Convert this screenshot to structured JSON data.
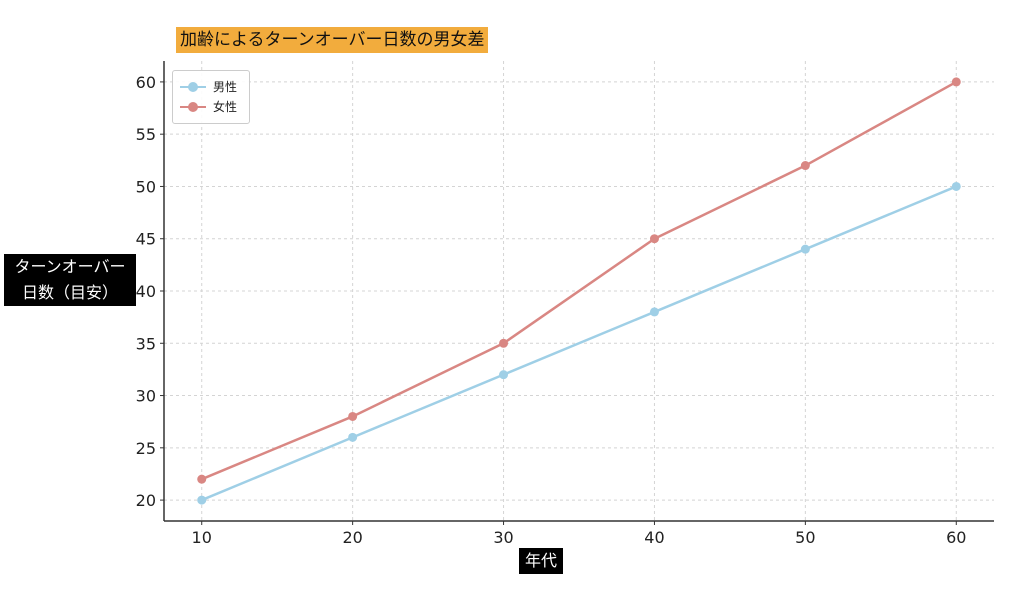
{
  "chart_data": {
    "type": "line",
    "title": "加齢によるターンオーバー日数の男女差",
    "xlabel": "年代",
    "ylabel_lines": [
      "ターンオーバー",
      "日数（目安）"
    ],
    "x": [
      10,
      20,
      30,
      40,
      50,
      60
    ],
    "xlim": [
      7.5,
      62.5
    ],
    "ylim": [
      18,
      62
    ],
    "yticks": [
      20,
      25,
      30,
      35,
      40,
      45,
      50,
      55,
      60
    ],
    "grid": true,
    "legend_position": "top-left",
    "series": [
      {
        "name": "男性",
        "color": "#9fcfe6",
        "values": [
          20,
          26,
          32,
          38,
          44,
          50
        ]
      },
      {
        "name": "女性",
        "color": "#d98783",
        "values": [
          22,
          28,
          35,
          45,
          52,
          60
        ]
      }
    ]
  }
}
